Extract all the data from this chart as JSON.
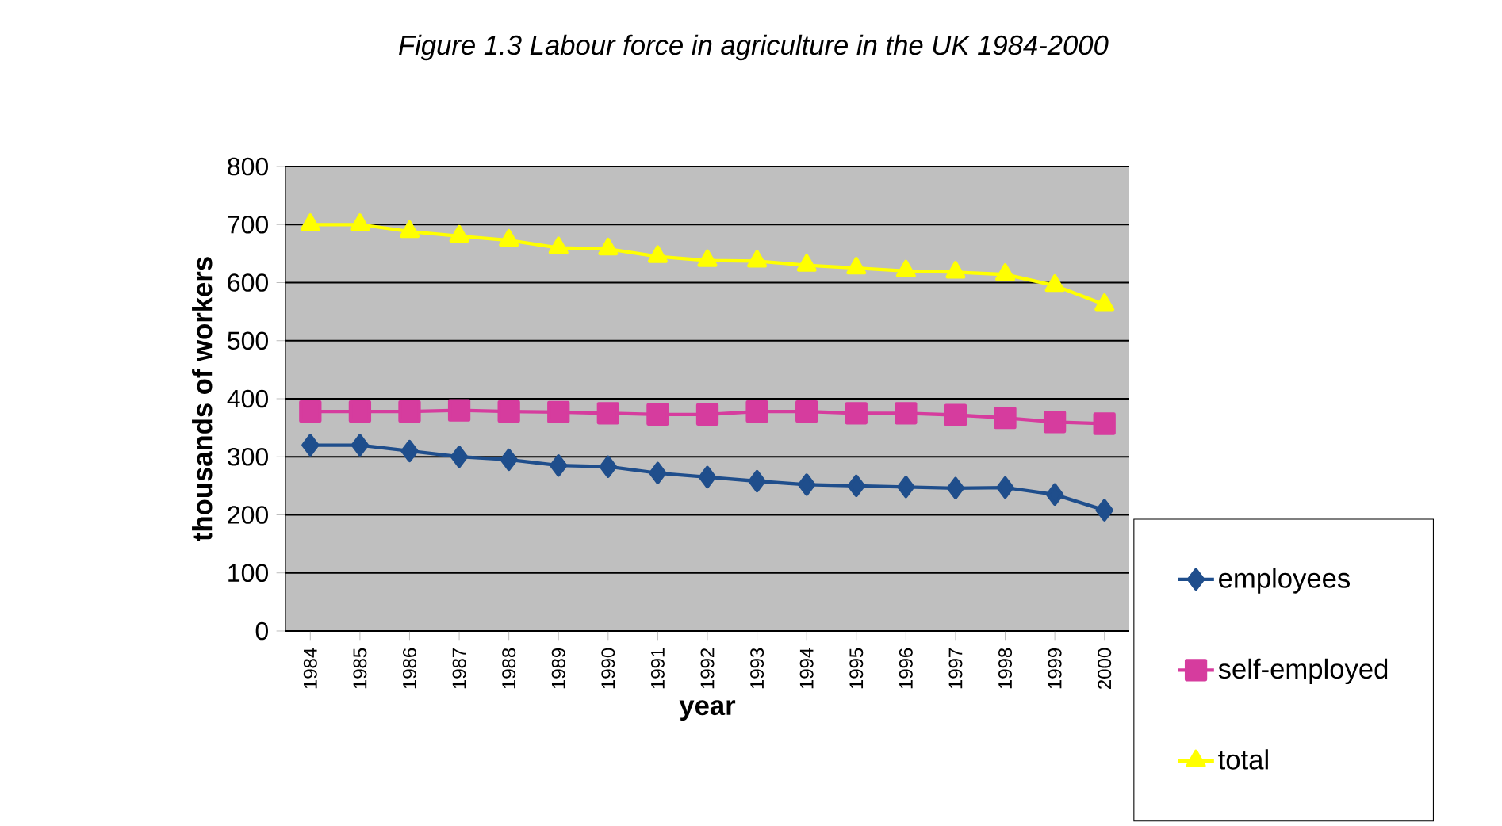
{
  "chart_data": {
    "type": "line",
    "title": "Figure 1.3 Labour force in agriculture in the UK 1984-2000",
    "xlabel": "year",
    "ylabel": "thousands of workers",
    "categories": [
      "1984",
      "1985",
      "1986",
      "1987",
      "1988",
      "1989",
      "1990",
      "1991",
      "1992",
      "1993",
      "1994",
      "1995",
      "1996",
      "1997",
      "1998",
      "1999",
      "2000"
    ],
    "series": [
      {
        "name": "employees",
        "color": "#1f4e8c",
        "marker": "diamond",
        "values": [
          320,
          320,
          310,
          300,
          295,
          285,
          283,
          272,
          265,
          258,
          252,
          250,
          248,
          246,
          247,
          235,
          208
        ]
      },
      {
        "name": "self-employed",
        "color": "#d63c9e",
        "marker": "square",
        "values": [
          378,
          378,
          378,
          380,
          378,
          377,
          375,
          373,
          373,
          378,
          378,
          375,
          375,
          372,
          367,
          360,
          357
        ]
      },
      {
        "name": "total",
        "color": "#ffff00",
        "marker": "triangle",
        "values": [
          700,
          700,
          688,
          680,
          673,
          660,
          658,
          645,
          638,
          637,
          630,
          625,
          620,
          618,
          614,
          595,
          562
        ]
      }
    ],
    "ylim": [
      0,
      800
    ],
    "yticks": [
      0,
      100,
      200,
      300,
      400,
      500,
      600,
      700,
      800
    ],
    "grid": "y",
    "legend": "right",
    "line_style": "solid"
  }
}
